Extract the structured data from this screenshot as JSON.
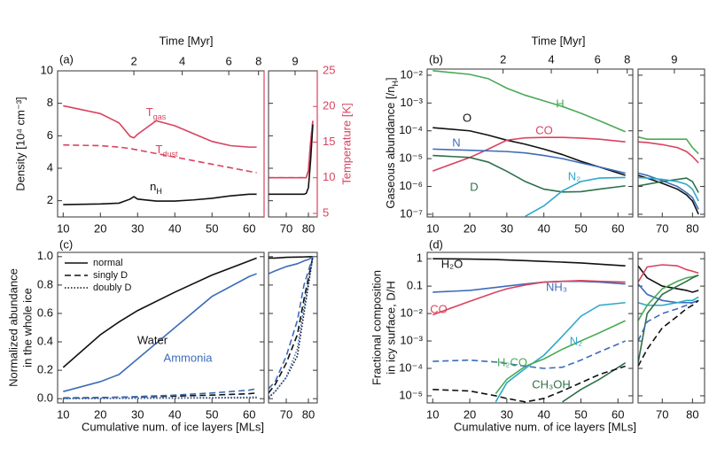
{
  "chart_data": [
    {
      "type": "line",
      "label": "(a)",
      "ylabel": [
        "Density [10⁴ cm⁻³]"
      ],
      "y2label": [
        "Temperature [K]"
      ],
      "y2color": "#d9435e",
      "top_axis_label": "Time [Myr]",
      "log": false,
      "ylim": [
        1,
        10
      ],
      "yticks": [
        2,
        4,
        6,
        8,
        10
      ],
      "y2lim": [
        4.5,
        25
      ],
      "y2ticks": [
        5,
        10,
        15,
        20,
        25
      ],
      "series": [
        {
          "name": [
            {
              "text": "T"
            },
            {
              "text": "gas",
              "shift": "sub"
            }
          ],
          "color": "#d9435e",
          "dash": "solid",
          "axis": "y2"
        },
        {
          "name": [
            {
              "text": "T"
            },
            {
              "text": "dust",
              "shift": "sub"
            }
          ],
          "color": "#d9435e",
          "dash": "dashed",
          "axis": "y2"
        },
        {
          "name": [
            {
              "text": "n"
            },
            {
              "text": "H",
              "shift": "sub"
            }
          ],
          "color": "#111111",
          "dash": "solid",
          "axis": "y"
        }
      ],
      "segments": [
        {
          "xlim": [
            8.5,
            64
          ],
          "xticks": [
            10,
            20,
            30,
            40,
            50,
            60
          ],
          "top_ticks": [
            {
              "value": 29,
              "label": "2"
            },
            {
              "value": 42,
              "label": "4"
            },
            {
              "value": 54.5,
              "label": "6"
            },
            {
              "value": 62.5,
              "label": "8"
            }
          ],
          "x": [
            10,
            20,
            25,
            28,
            29,
            30,
            35,
            40,
            45,
            50,
            55,
            60,
            62
          ],
          "values": [
            [
              20.1,
              19.0,
              17.7,
              15.8,
              15.6,
              16.1,
              18.0,
              17.3,
              16.2,
              15.1,
              14.5,
              14.3,
              14.3
            ],
            [
              14.6,
              14.5,
              14.3,
              14.1,
              14.0,
              13.9,
              13.4,
              12.9,
              12.4,
              11.9,
              11.4,
              10.9,
              10.7
            ],
            [
              1.76,
              1.8,
              1.85,
              2.1,
              2.25,
              2.1,
              1.98,
              1.98,
              2.05,
              2.15,
              2.3,
              2.4,
              2.4
            ]
          ]
        },
        {
          "xlim": [
            62,
            84
          ],
          "xticks": [
            70,
            80
          ],
          "top_ticks": [
            {
              "value": 74,
              "label": "9"
            }
          ],
          "x": [
            62,
            70,
            78,
            79,
            80,
            81,
            82
          ],
          "values": [
            [
              10,
              10,
              10,
              10,
              11,
              15,
              18
            ],
            [
              10,
              10,
              10,
              10,
              11,
              15,
              18
            ],
            [
              2.4,
              2.4,
              2.4,
              2.45,
              2.8,
              4.5,
              6.7
            ]
          ]
        }
      ]
    },
    {
      "type": "line",
      "label": "(b)",
      "ylabel": [
        [
          {
            "text": "Gaseous abundance [/n"
          },
          {
            "text": "H",
            "shift": "sub"
          },
          {
            "text": "]"
          }
        ]
      ],
      "top_axis_label": "Time [Myr]",
      "log": true,
      "ylim": [
        8e-08,
        0.0166
      ],
      "yticks": [
        {
          "value": 0.01,
          "label": "10⁻²"
        },
        {
          "value": 0.001,
          "label": "10⁻³"
        },
        {
          "value": 0.0001,
          "label": "10⁻⁴"
        },
        {
          "value": 1e-05,
          "label": "10⁻⁵"
        },
        {
          "value": 1e-06,
          "label": "10⁻⁶"
        },
        {
          "value": 1e-07,
          "label": "10⁻⁷"
        }
      ],
      "series": [
        {
          "name": "H",
          "color": "#4aaa55",
          "dash": "solid"
        },
        {
          "name": "O",
          "color": "#111111",
          "dash": "solid"
        },
        {
          "name": "CO",
          "color": "#d9435e",
          "dash": "solid"
        },
        {
          "name": "N",
          "color": "#3d6cb9",
          "dash": "solid"
        },
        {
          "name": "D",
          "color": "#2f6f4a",
          "dash": "solid"
        },
        {
          "name": "N₂",
          "color": "#2ea8c9",
          "dash": "solid"
        }
      ],
      "segments": [
        {
          "xlim": [
            8.5,
            64
          ],
          "xticks": [
            10,
            20,
            30,
            40,
            50,
            60
          ],
          "top_ticks": [
            {
              "value": 29,
              "label": "2"
            },
            {
              "value": 42,
              "label": "4"
            },
            {
              "value": 54.5,
              "label": "6"
            },
            {
              "value": 62.5,
              "label": "8"
            }
          ],
          "x": [
            10,
            20,
            25,
            30,
            35,
            40,
            45,
            50,
            55,
            62
          ],
          "values": [
            [
              0.0145,
              0.0107,
              0.0075,
              0.0034,
              0.0019,
              0.0012,
              0.00075,
              0.00043,
              0.00023,
              9.3e-05
            ],
            [
              0.00013,
              0.0001,
              7e-05,
              4.6e-05,
              3.3e-05,
              2.2e-05,
              1.4e-05,
              8e-06,
              5e-06,
              2.5e-06
            ],
            [
              3.6e-06,
              1.1e-05,
              2.2e-05,
              4.6e-05,
              5.6e-05,
              5.8e-05,
              5.8e-05,
              5.5e-05,
              5e-05,
              4e-05
            ],
            [
              2.2e-05,
              2e-05,
              1.9e-05,
              1.8e-05,
              1.6e-05,
              1.3e-05,
              1e-05,
              7e-06,
              5e-06,
              3e-06
            ],
            [
              1.3e-05,
              1.1e-05,
              7.5e-06,
              3.5e-06,
              1.5e-06,
              8e-07,
              6.3e-07,
              6.5e-07,
              8e-07,
              1.05e-06
            ],
            [
              null,
              null,
              null,
              null,
              8.5e-08,
              2e-07,
              6.9e-07,
              1.5e-06,
              2e-06,
              2.1e-06
            ]
          ]
        },
        {
          "xlim": [
            62,
            84
          ],
          "xticks": [
            70,
            80
          ],
          "top_ticks": [
            {
              "value": 74,
              "label": "9"
            }
          ],
          "x": [
            62,
            65,
            70,
            75,
            78,
            80,
            82
          ],
          "values": [
            [
              6e-05,
              5e-05,
              5e-05,
              5e-05,
              5e-05,
              2.5e-05,
              1.5e-05
            ],
            [
              2.5e-06,
              2e-06,
              1.3e-06,
              8e-07,
              5e-07,
              3e-07,
              1e-07
            ],
            [
              4e-05,
              3.8e-05,
              3.2e-05,
              2.5e-05,
              1.8e-05,
              1.2e-05,
              7e-06
            ],
            [
              3e-06,
              2.5e-06,
              1.6e-06,
              1e-06,
              6e-07,
              4e-07,
              1.5e-07
            ],
            [
              1.05e-06,
              1.2e-06,
              1.5e-06,
              1.8e-06,
              2e-06,
              1.5e-06,
              6e-07
            ],
            [
              2.1e-06,
              2e-06,
              1.8e-06,
              1.5e-06,
              1.2e-06,
              8e-07,
              3e-07
            ]
          ]
        }
      ]
    },
    {
      "type": "line",
      "label": "(c)",
      "ylabel": [
        "Normalized abundance",
        "in the whole ice"
      ],
      "xlabel": "Cumulative num. of ice layers [MLs]",
      "log": false,
      "ylim": [
        -0.03,
        1.03
      ],
      "yticks": [
        {
          "value": 0,
          "label": "0.0"
        },
        0.2,
        0.4,
        0.6,
        0.8,
        {
          "value": 1,
          "label": "1.0"
        }
      ],
      "species": [
        {
          "name": "Water",
          "color": "#111111"
        },
        {
          "name": "Ammonia",
          "color": "#3d6cb9"
        }
      ],
      "forms": [
        {
          "name": "normal",
          "dash": "solid"
        },
        {
          "name": "singly D",
          "dash": "dashed"
        },
        {
          "name": "doubly D",
          "dash": "dotted"
        }
      ],
      "series": [
        {
          "species": 0,
          "form": 0
        },
        {
          "species": 1,
          "form": 0
        },
        {
          "species": 0,
          "form": 1
        },
        {
          "species": 1,
          "form": 1
        },
        {
          "species": 0,
          "form": 2
        },
        {
          "species": 1,
          "form": 2
        }
      ],
      "segments": [
        {
          "xlim": [
            8.5,
            64
          ],
          "xticks": [
            10,
            20,
            30,
            40,
            50,
            60
          ],
          "x": [
            10,
            20,
            25,
            30,
            40,
            50,
            60,
            62
          ],
          "values": [
            [
              0.22,
              0.45,
              0.54,
              0.62,
              0.75,
              0.87,
              0.97,
              0.99
            ],
            [
              0.05,
              0.12,
              0.17,
              0.28,
              0.5,
              0.72,
              0.86,
              0.88
            ],
            [
              0.005,
              0.008,
              0.01,
              0.012,
              0.018,
              0.025,
              0.035,
              0.04
            ],
            [
              0.003,
              0.006,
              0.01,
              0.015,
              0.025,
              0.04,
              0.06,
              0.07
            ],
            [
              0.001,
              0.002,
              0.002,
              0.003,
              0.004,
              0.005,
              0.006,
              0.006
            ],
            [
              0.001,
              0.002,
              0.003,
              0.004,
              0.006,
              0.008,
              0.01,
              0.012
            ]
          ]
        },
        {
          "xlim": [
            62,
            84
          ],
          "xticks": [
            70,
            80
          ],
          "x": [
            62,
            65,
            70,
            75,
            78,
            80,
            82
          ],
          "values": [
            [
              0.99,
              0.99,
              0.995,
              0.997,
              0.998,
              0.999,
              1.0
            ],
            [
              0.88,
              0.9,
              0.93,
              0.95,
              0.97,
              0.98,
              1.0
            ],
            [
              0.04,
              0.1,
              0.25,
              0.45,
              0.7,
              0.85,
              1.0
            ],
            [
              0.07,
              0.12,
              0.3,
              0.55,
              0.8,
              0.9,
              1.0
            ],
            [
              0.006,
              0.05,
              0.15,
              0.3,
              0.6,
              0.8,
              1.0
            ],
            [
              0.012,
              0.05,
              0.15,
              0.35,
              0.65,
              0.82,
              1.0
            ]
          ]
        }
      ]
    },
    {
      "type": "line",
      "label": "(d)",
      "ylabel": [
        "Fractional composition",
        "in icy surface, D/H"
      ],
      "xlabel": "Cumulative num. of ice layers [MLs]",
      "log": true,
      "ylim": [
        5.5e-06,
        1.7
      ],
      "yticks": [
        1,
        0.1,
        {
          "value": 0.01,
          "label": "10⁻²"
        },
        {
          "value": 0.001,
          "label": "10⁻³"
        },
        {
          "value": 0.0001,
          "label": "10⁻⁴"
        },
        {
          "value": 1e-05,
          "label": "10⁻⁵"
        }
      ],
      "series": [
        {
          "name": "H₂O",
          "color": "#111111",
          "dash": "solid"
        },
        {
          "name": "NH₃",
          "color": "#3d6cb9",
          "dash": "solid"
        },
        {
          "name": "CO",
          "color": "#d9435e",
          "dash": "solid"
        },
        {
          "name": "N₂",
          "color": "#2ea8c9",
          "dash": "solid"
        },
        {
          "name": "H₂CO",
          "color": "#4aaa55",
          "dash": "solid"
        },
        {
          "name": "CH₃OH",
          "color": "#2f6f4a",
          "dash": "solid"
        },
        {
          "color": "#3d6cb9",
          "dash": "dashed"
        },
        {
          "color": "#111111",
          "dash": "dashed"
        }
      ],
      "segments": [
        {
          "xlim": [
            8.5,
            64
          ],
          "xticks": [
            10,
            20,
            30,
            40,
            50,
            60
          ],
          "x": [
            10,
            20,
            27,
            30,
            35,
            40,
            45,
            50,
            55,
            62
          ],
          "values": [
            [
              1.0,
              0.97,
              0.93,
              0.9,
              0.85,
              0.8,
              0.75,
              0.7,
              0.63,
              0.55
            ],
            [
              0.06,
              0.07,
              0.09,
              0.1,
              0.12,
              0.14,
              0.15,
              0.15,
              0.14,
              0.12
            ],
            [
              0.009,
              0.028,
              0.06,
              0.08,
              0.11,
              0.14,
              0.15,
              0.16,
              0.15,
              0.14
            ],
            [
              null,
              null,
              6e-06,
              3e-05,
              0.0001,
              0.0003,
              0.0015,
              0.008,
              0.02,
              0.025
            ],
            [
              null,
              null,
              1.2e-05,
              4e-05,
              0.00012,
              0.00022,
              0.0005,
              0.001,
              0.002,
              0.0055
            ],
            [
              null,
              null,
              null,
              null,
              null,
              null,
              6e-06,
              1.7e-05,
              4e-05,
              0.00016
            ],
            [
              0.00018,
              0.0002,
              0.00017,
              0.00015,
              0.00012,
              0.0001,
              0.00011,
              0.0002,
              0.0004,
              0.001
            ],
            [
              1.7e-05,
              1.5e-05,
              1e-05,
              8e-06,
              6e-06,
              8e-06,
              1.5e-05,
              3e-05,
              6e-05,
              0.00012
            ]
          ]
        },
        {
          "xlim": [
            62,
            84
          ],
          "xticks": [
            70,
            80
          ],
          "x": [
            62,
            65,
            70,
            75,
            78,
            80,
            82
          ],
          "values": [
            [
              0.55,
              0.2,
              0.1,
              0.08,
              0.07,
              0.06,
              0.07
            ],
            [
              0.12,
              0.05,
              0.03,
              0.025,
              0.025,
              0.025,
              0.03
            ],
            [
              0.14,
              0.5,
              0.6,
              0.55,
              0.4,
              0.35,
              0.3
            ],
            [
              0.025,
              0.02,
              0.02,
              0.025,
              0.03,
              0.03,
              0.04
            ],
            [
              0.0055,
              0.02,
              0.08,
              0.15,
              0.2,
              0.22,
              0.25
            ],
            [
              0.00016,
              0.01,
              0.05,
              0.1,
              0.15,
              0.2,
              0.25
            ],
            [
              0.001,
              0.005,
              0.01,
              0.015,
              0.02,
              0.025,
              0.03
            ],
            [
              0.00012,
              0.0005,
              0.003,
              0.008,
              0.015,
              0.02,
              0.03
            ]
          ]
        }
      ]
    }
  ]
}
